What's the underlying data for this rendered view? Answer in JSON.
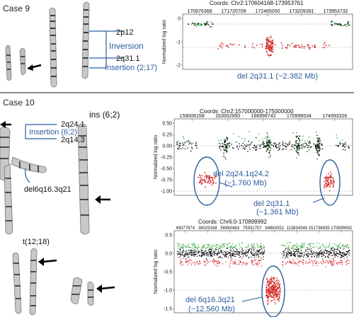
{
  "case9": {
    "label": "Case 9",
    "annotations": {
      "band_top": "2p12",
      "inversion": "Inversion",
      "band_bottom": "2q31.1",
      "insertion": "Insertion (2;17)"
    },
    "plot": {
      "coords": "Coords: Chr2:170604168-173953761",
      "ticks": [
        "170976368",
        "171720709",
        "172465050",
        "173209391",
        "173953732"
      ],
      "ylabel": "Normalized log ratio",
      "yticks": [
        "0",
        "-1",
        "-2"
      ],
      "deletion_label": "del 2q31.1 (~2.382 Mb)"
    }
  },
  "case10": {
    "label": "Case 10",
    "annotations": {
      "ins": "ins (6;2)",
      "band_top": "2q24.1",
      "insertion": "Insertion (6;2)",
      "band_bottom": "2q14.3",
      "del6q": "del6q16.3q21",
      "translocation": "t(12;18)"
    },
    "plot_chr2": {
      "coords": "Coords: Chr2:157000000-175000000",
      "ticks": [
        "159006158",
        "163002950",
        "166999742",
        "170996534",
        "174993326"
      ],
      "ylabel": "Normalized log ratio",
      "yticks": [
        "0.50",
        "0.25",
        "0.00",
        "-0.25",
        "-0.50",
        "-0.75",
        "-1.00"
      ],
      "del1_line1": "del 2q24.1q24.2",
      "del1_line2": "(~1.760 Mb)",
      "del2_line1": "del 2q31.1",
      "del2_line2": "(~1.361 Mb)"
    },
    "plot_chr6": {
      "coords": "Coords: Chr6:0-170899992",
      "ticks": [
        "49077874",
        "38029168",
        "56960463",
        "75931757",
        "94883052",
        "113834346",
        "151736935",
        "170899992"
      ],
      "ylabel": "Normalized log ratio",
      "yticks": [
        "0.5",
        "0.0",
        "-0.5",
        "-1.0",
        "-1.5"
      ],
      "del_line1": "del 6q16.3q21",
      "del_line2": "(~12.560 Mb)"
    }
  },
  "colors": {
    "accent": "#2a5d9f",
    "red": "#d42a2a",
    "green": "#34a838",
    "black": "#111111",
    "divider": "#8a8a8a"
  }
}
